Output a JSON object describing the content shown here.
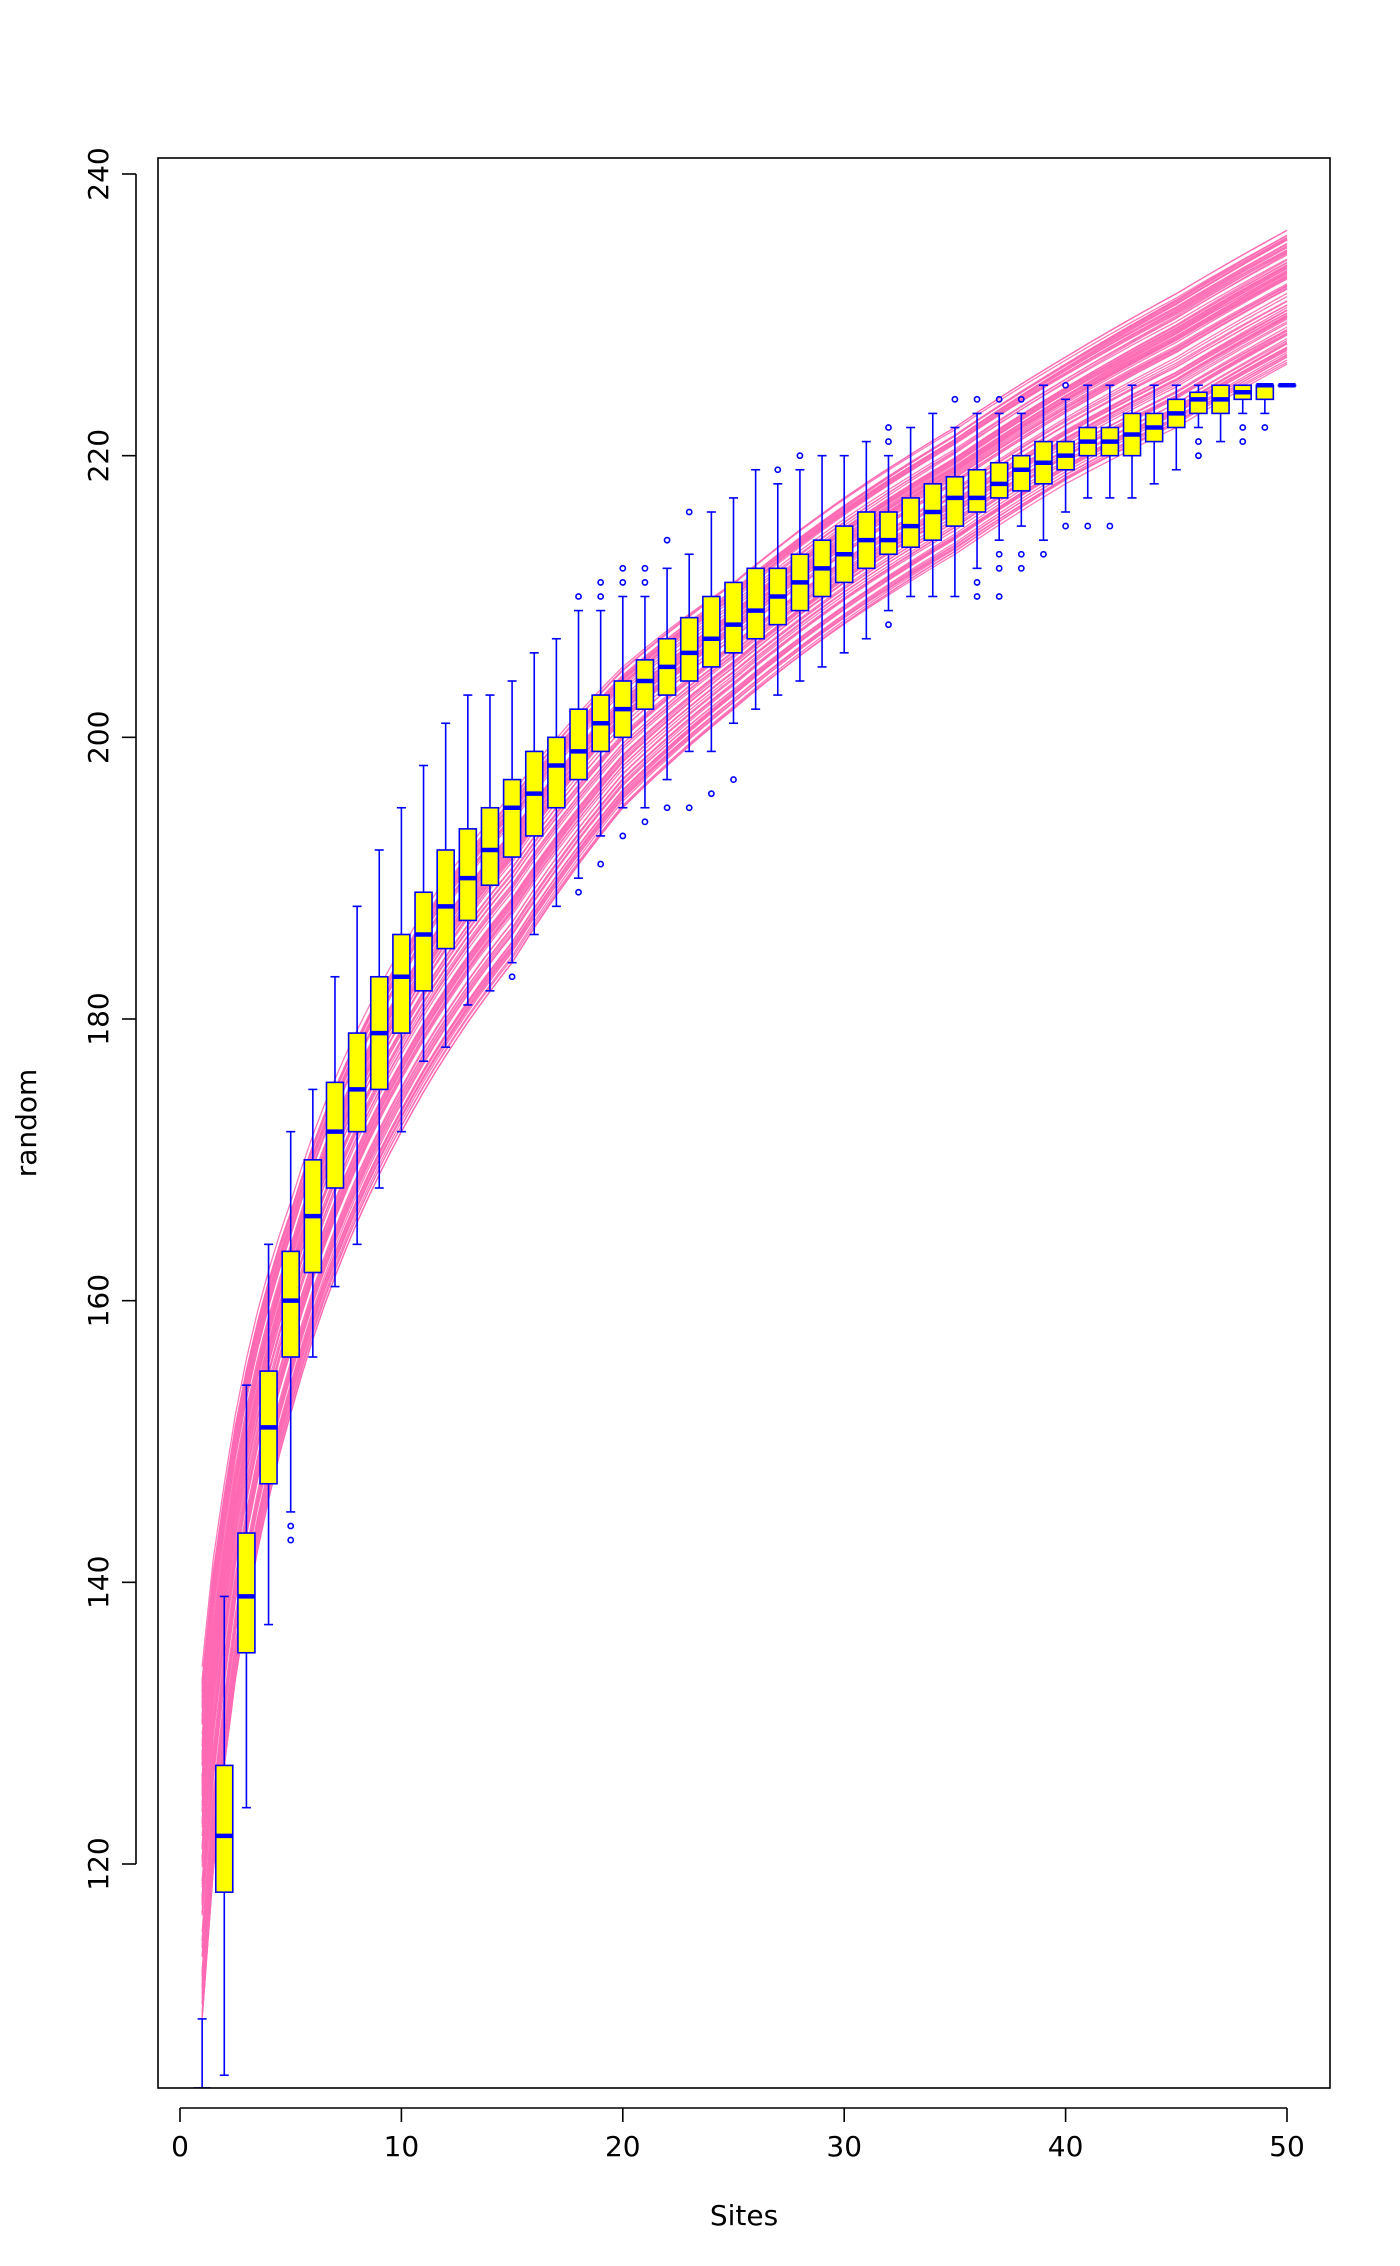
{
  "chart_data": {
    "type": "boxplot",
    "title": "",
    "xlabel": "Sites",
    "ylabel": "random",
    "xlim": [
      0,
      51
    ],
    "ylim": [
      104,
      240
    ],
    "x_ticks": [
      0,
      10,
      20,
      30,
      40,
      50
    ],
    "y_ticks": [
      120,
      140,
      160,
      180,
      200,
      220,
      240
    ],
    "colors": {
      "box_fill": "#ffff00",
      "box_border": "#0000ff",
      "curves": "#ff69b4",
      "axes": "#000000"
    },
    "boxes": [
      {
        "x": 1,
        "lw": 104,
        "q1": 104,
        "med": 104,
        "q3": 104,
        "uw": 109,
        "out": []
      },
      {
        "x": 2,
        "lw": 105,
        "q1": 118,
        "med": 122,
        "q3": 127,
        "uw": 139,
        "out": []
      },
      {
        "x": 3,
        "lw": 124,
        "q1": 135,
        "med": 139,
        "q3": 143.5,
        "uw": 154,
        "out": []
      },
      {
        "x": 4,
        "lw": 137,
        "q1": 147,
        "med": 151,
        "q3": 155,
        "uw": 164,
        "out": []
      },
      {
        "x": 5,
        "lw": 145,
        "q1": 156,
        "med": 160,
        "q3": 163.5,
        "uw": 172,
        "out": [
          143,
          144
        ]
      },
      {
        "x": 6,
        "lw": 156,
        "q1": 162,
        "med": 166,
        "q3": 170,
        "uw": 175,
        "out": []
      },
      {
        "x": 7,
        "lw": 161,
        "q1": 168,
        "med": 172,
        "q3": 175.5,
        "uw": 183,
        "out": []
      },
      {
        "x": 8,
        "lw": 164,
        "q1": 172,
        "med": 175,
        "q3": 179,
        "uw": 188,
        "out": []
      },
      {
        "x": 9,
        "lw": 168,
        "q1": 175,
        "med": 179,
        "q3": 183,
        "uw": 192,
        "out": []
      },
      {
        "x": 10,
        "lw": 172,
        "q1": 179,
        "med": 183,
        "q3": 186,
        "uw": 195,
        "out": []
      },
      {
        "x": 11,
        "lw": 177,
        "q1": 182,
        "med": 186,
        "q3": 189,
        "uw": 198,
        "out": []
      },
      {
        "x": 12,
        "lw": 178,
        "q1": 185,
        "med": 188,
        "q3": 192,
        "uw": 201,
        "out": []
      },
      {
        "x": 13,
        "lw": 181,
        "q1": 187,
        "med": 190,
        "q3": 193.5,
        "uw": 203,
        "out": []
      },
      {
        "x": 14,
        "lw": 182,
        "q1": 189.5,
        "med": 192,
        "q3": 195,
        "uw": 203,
        "out": []
      },
      {
        "x": 15,
        "lw": 184,
        "q1": 191.5,
        "med": 195,
        "q3": 197,
        "uw": 204,
        "out": [
          183
        ]
      },
      {
        "x": 16,
        "lw": 186,
        "q1": 193,
        "med": 196,
        "q3": 199,
        "uw": 206,
        "out": []
      },
      {
        "x": 17,
        "lw": 188,
        "q1": 195,
        "med": 198,
        "q3": 200,
        "uw": 207,
        "out": []
      },
      {
        "x": 18,
        "lw": 190,
        "q1": 197,
        "med": 199,
        "q3": 202,
        "uw": 209,
        "out": [
          189,
          210
        ]
      },
      {
        "x": 19,
        "lw": 193,
        "q1": 199,
        "med": 201,
        "q3": 203,
        "uw": 209,
        "out": [
          191,
          210,
          211
        ]
      },
      {
        "x": 20,
        "lw": 195,
        "q1": 200,
        "med": 202,
        "q3": 204,
        "uw": 210,
        "out": [
          193,
          211,
          212
        ]
      },
      {
        "x": 21,
        "lw": 195,
        "q1": 202,
        "med": 204,
        "q3": 205.5,
        "uw": 210,
        "out": [
          194,
          211,
          212
        ]
      },
      {
        "x": 22,
        "lw": 197,
        "q1": 203,
        "med": 205,
        "q3": 207,
        "uw": 212,
        "out": [
          195,
          214
        ]
      },
      {
        "x": 23,
        "lw": 199,
        "q1": 204,
        "med": 206,
        "q3": 208.5,
        "uw": 213,
        "out": [
          195,
          216
        ]
      },
      {
        "x": 24,
        "lw": 199,
        "q1": 205,
        "med": 207,
        "q3": 210,
        "uw": 216,
        "out": [
          196
        ]
      },
      {
        "x": 25,
        "lw": 201,
        "q1": 206,
        "med": 208,
        "q3": 211,
        "uw": 217,
        "out": [
          197
        ]
      },
      {
        "x": 26,
        "lw": 202,
        "q1": 207,
        "med": 209,
        "q3": 212,
        "uw": 219,
        "out": []
      },
      {
        "x": 27,
        "lw": 203,
        "q1": 208,
        "med": 210,
        "q3": 212,
        "uw": 218,
        "out": [
          219
        ]
      },
      {
        "x": 28,
        "lw": 204,
        "q1": 209,
        "med": 211,
        "q3": 213,
        "uw": 219,
        "out": [
          220
        ]
      },
      {
        "x": 29,
        "lw": 205,
        "q1": 210,
        "med": 212,
        "q3": 214,
        "uw": 220,
        "out": []
      },
      {
        "x": 30,
        "lw": 206,
        "q1": 211,
        "med": 213,
        "q3": 215,
        "uw": 220,
        "out": []
      },
      {
        "x": 31,
        "lw": 207,
        "q1": 212,
        "med": 214,
        "q3": 216,
        "uw": 221,
        "out": []
      },
      {
        "x": 32,
        "lw": 209,
        "q1": 213,
        "med": 214,
        "q3": 216,
        "uw": 220,
        "out": [
          208,
          221,
          222
        ]
      },
      {
        "x": 33,
        "lw": 210,
        "q1": 213.5,
        "med": 215,
        "q3": 217,
        "uw": 222,
        "out": []
      },
      {
        "x": 34,
        "lw": 210,
        "q1": 214,
        "med": 216,
        "q3": 218,
        "uw": 223,
        "out": []
      },
      {
        "x": 35,
        "lw": 210,
        "q1": 215,
        "med": 217,
        "q3": 218.5,
        "uw": 222,
        "out": [
          224
        ]
      },
      {
        "x": 36,
        "lw": 212,
        "q1": 216,
        "med": 217,
        "q3": 219,
        "uw": 223,
        "out": [
          210,
          211,
          224
        ]
      },
      {
        "x": 37,
        "lw": 214,
        "q1": 217,
        "med": 218,
        "q3": 219.5,
        "uw": 223,
        "out": [
          210,
          212,
          213,
          224
        ]
      },
      {
        "x": 38,
        "lw": 215,
        "q1": 217.5,
        "med": 219,
        "q3": 220,
        "uw": 223,
        "out": [
          212,
          213,
          224
        ]
      },
      {
        "x": 39,
        "lw": 214,
        "q1": 218,
        "med": 219.5,
        "q3": 221,
        "uw": 225,
        "out": [
          213
        ]
      },
      {
        "x": 40,
        "lw": 216,
        "q1": 219,
        "med": 220,
        "q3": 221,
        "uw": 224,
        "out": [
          215,
          225
        ]
      },
      {
        "x": 41,
        "lw": 217,
        "q1": 220,
        "med": 221,
        "q3": 222,
        "uw": 225,
        "out": [
          215
        ]
      },
      {
        "x": 42,
        "lw": 217,
        "q1": 220,
        "med": 221,
        "q3": 222,
        "uw": 225,
        "out": [
          215
        ]
      },
      {
        "x": 43,
        "lw": 217,
        "q1": 220,
        "med": 221.5,
        "q3": 223,
        "uw": 225,
        "out": []
      },
      {
        "x": 44,
        "lw": 218,
        "q1": 221,
        "med": 222,
        "q3": 223,
        "uw": 225,
        "out": []
      },
      {
        "x": 45,
        "lw": 219,
        "q1": 222,
        "med": 223,
        "q3": 224,
        "uw": 225,
        "out": []
      },
      {
        "x": 46,
        "lw": 222,
        "q1": 223,
        "med": 224,
        "q3": 224.5,
        "uw": 225,
        "out": [
          220,
          221
        ]
      },
      {
        "x": 47,
        "lw": 221,
        "q1": 223,
        "med": 224,
        "q3": 225,
        "uw": 225,
        "out": []
      },
      {
        "x": 48,
        "lw": 223,
        "q1": 224,
        "med": 224.5,
        "q3": 225,
        "uw": 225,
        "out": [
          221,
          222
        ]
      },
      {
        "x": 49,
        "lw": 223,
        "q1": 224,
        "med": 225,
        "q3": 225,
        "uw": 225,
        "out": [
          222
        ]
      },
      {
        "x": 50,
        "lw": 225,
        "q1": 225,
        "med": 225,
        "q3": 225,
        "uw": 225,
        "out": []
      }
    ],
    "curve_band": {
      "note_free": true,
      "lower": [
        [
          1,
          109
        ],
        [
          2,
          127
        ],
        [
          5,
          152
        ],
        [
          10,
          172
        ],
        [
          15,
          184
        ],
        [
          20,
          195
        ],
        [
          25,
          202
        ],
        [
          30,
          208
        ],
        [
          35,
          213
        ],
        [
          40,
          218
        ],
        [
          45,
          222
        ],
        [
          50,
          226.5
        ]
      ],
      "upper": [
        [
          1,
          134
        ],
        [
          2,
          147
        ],
        [
          5,
          167
        ],
        [
          10,
          185
        ],
        [
          15,
          196
        ],
        [
          20,
          205
        ],
        [
          25,
          211
        ],
        [
          30,
          217
        ],
        [
          35,
          222
        ],
        [
          40,
          227
        ],
        [
          45,
          231.5
        ],
        [
          50,
          236
        ]
      ],
      "count": 100
    }
  }
}
